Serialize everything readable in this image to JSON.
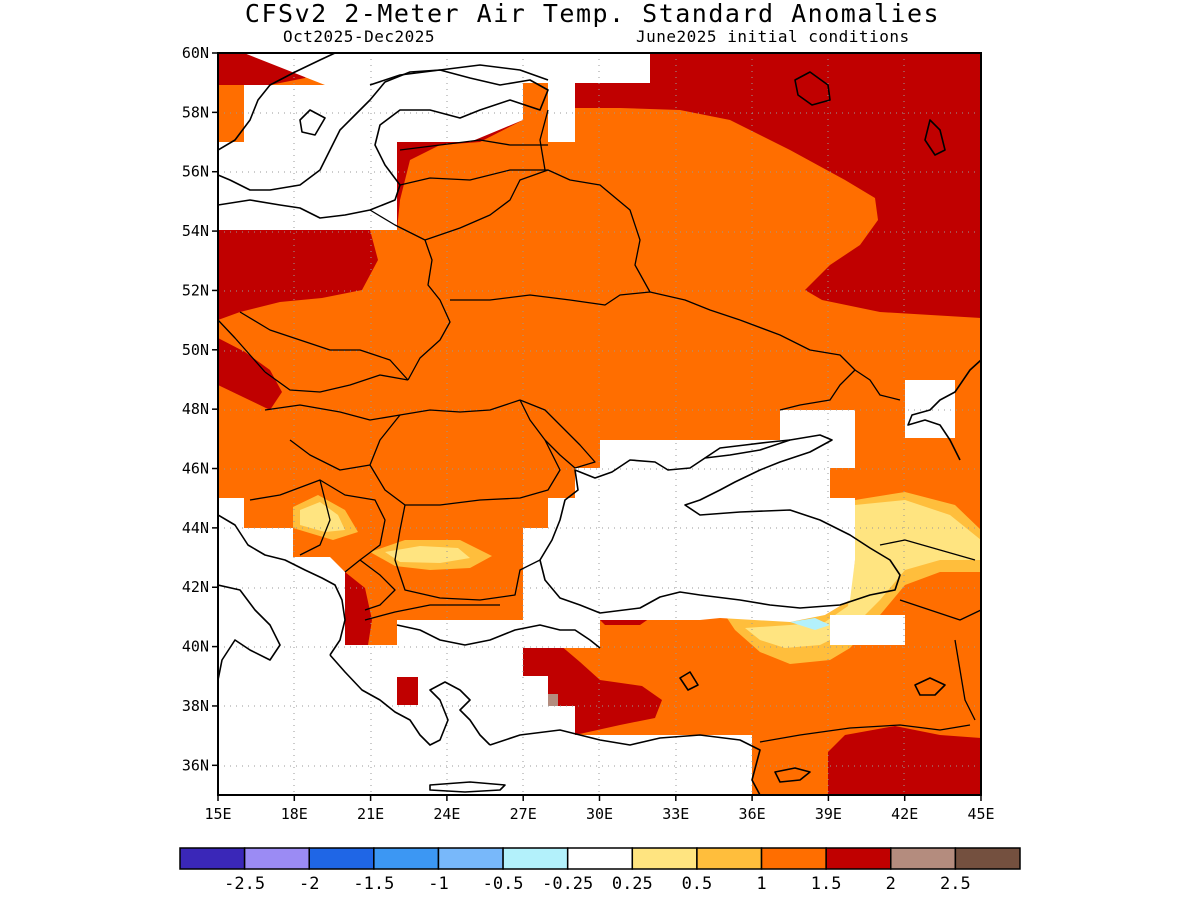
{
  "header": {
    "title": "CFSv2 2-Meter Air Temp. Standard Anomalies",
    "period": "Oct2025-Dec2025",
    "init": "June2025 initial conditions"
  },
  "map": {
    "lon_range": [
      15,
      45
    ],
    "lat_range": [
      35,
      60
    ],
    "lon_ticks": [
      "15E",
      "18E",
      "21E",
      "24E",
      "27E",
      "30E",
      "33E",
      "36E",
      "39E",
      "42E",
      "45E"
    ],
    "lat_ticks": [
      "60N",
      "58N",
      "56N",
      "54N",
      "52N",
      "50N",
      "48N",
      "46N",
      "44N",
      "42N",
      "40N",
      "38N",
      "36N"
    ],
    "grid": true
  },
  "colorbar": {
    "colors": [
      "#3a27b8",
      "#9b8bf4",
      "#1f66e6",
      "#3c97f3",
      "#78b8fa",
      "#b3f1fb",
      "#ffffff",
      "#ffe480",
      "#ffbe3c",
      "#ff6e00",
      "#c00000",
      "#b48c7e",
      "#74503f"
    ],
    "labels": [
      "-2.5",
      "-2",
      "-1.5",
      "-1",
      "-0.5",
      "-0.25",
      "0.25",
      "0.5",
      "1",
      "1.5",
      "2",
      "2.5"
    ]
  }
}
